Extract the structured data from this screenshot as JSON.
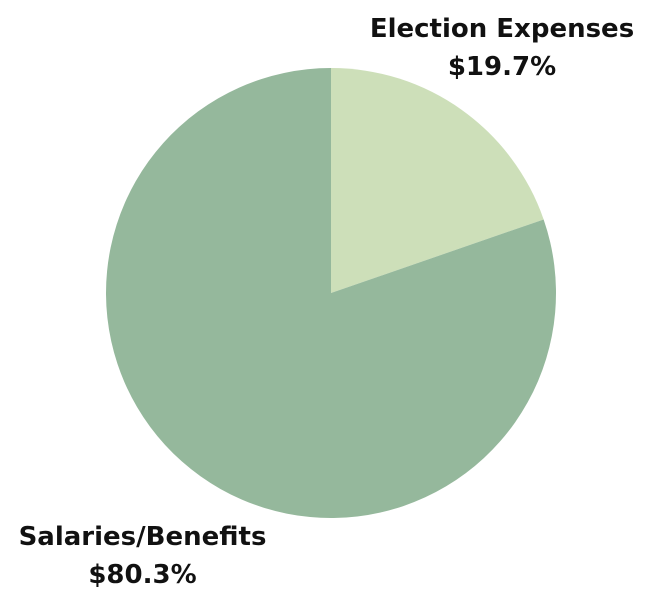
{
  "chart_data": {
    "type": "pie",
    "title": "",
    "slices": [
      {
        "label": "Election Expenses",
        "value": 19.7,
        "display": "$19.7%",
        "color": "#cddfb9"
      },
      {
        "label": "Salaries/Benefits",
        "value": 80.3,
        "display": "$80.3%",
        "color": "#95b89c"
      }
    ],
    "start_angle": "12 o'clock",
    "direction": "clockwise"
  }
}
